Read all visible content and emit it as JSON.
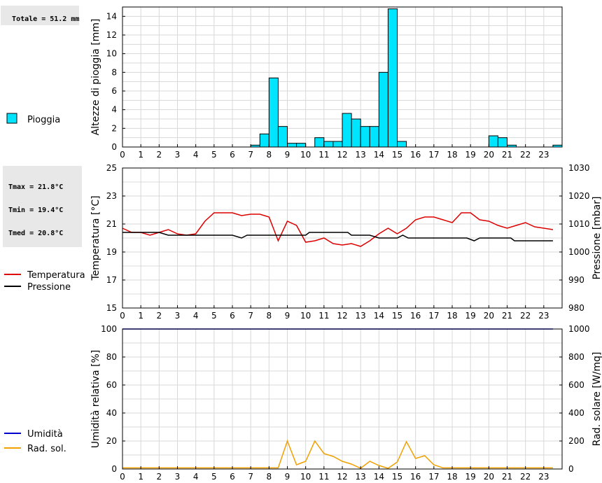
{
  "rain_info": {
    "total": "Totale = 51.2 mm"
  },
  "temp_info": {
    "tmax": "Tmax = 21.8°C",
    "tmin": "Tmin = 19.4°C",
    "tmed": "Tmed = 20.8°C"
  },
  "colors": {
    "rain": "#00e5ff",
    "temperature": "#dd0000",
    "pressure": "#000000",
    "humidity": "#0000cc",
    "radiation": "#f0a000",
    "grid": "#d8d8d8"
  },
  "chart_data": [
    {
      "type": "bar",
      "ylabel": "Altezze di pioggia [mm]",
      "xlim": [
        0,
        24
      ],
      "ylim": [
        0,
        15
      ],
      "yticks": [
        0,
        2,
        4,
        6,
        8,
        10,
        12,
        14
      ],
      "xticks": [
        "0",
        "1",
        "2",
        "3",
        "4",
        "5",
        "6",
        "7",
        "8",
        "9",
        "10",
        "11",
        "12",
        "13",
        "14",
        "15",
        "16",
        "17",
        "18",
        "19",
        "20",
        "21",
        "22",
        "23"
      ],
      "grid": true,
      "series": [
        {
          "name": "Pioggia",
          "bar_width": 0.5,
          "points": [
            [
              7.0,
              0.2
            ],
            [
              7.5,
              1.4
            ],
            [
              8.0,
              7.4
            ],
            [
              8.5,
              2.2
            ],
            [
              9.0,
              0.4
            ],
            [
              9.5,
              0.4
            ],
            [
              10.5,
              1.0
            ],
            [
              11.0,
              0.6
            ],
            [
              11.5,
              0.6
            ],
            [
              12.0,
              3.6
            ],
            [
              12.5,
              3.0
            ],
            [
              13.0,
              2.2
            ],
            [
              13.5,
              2.2
            ],
            [
              14.0,
              8.0
            ],
            [
              14.5,
              14.8
            ],
            [
              15.0,
              0.6
            ],
            [
              20.0,
              1.2
            ],
            [
              20.5,
              1.0
            ],
            [
              21.0,
              0.2
            ],
            [
              23.5,
              0.2
            ]
          ]
        }
      ]
    },
    {
      "type": "line",
      "ylabel": "Temperatura [°C]",
      "ylabel_right": "Pressione [mbar]",
      "xlim": [
        0,
        24
      ],
      "ylim": [
        15,
        25
      ],
      "ylim_right": [
        980,
        1030
      ],
      "yticks": [
        15,
        17,
        19,
        21,
        23,
        25
      ],
      "yticks_right": [
        980,
        990,
        1000,
        1010,
        1020,
        1030
      ],
      "xticks": [
        "0",
        "1",
        "2",
        "3",
        "4",
        "5",
        "6",
        "7",
        "8",
        "9",
        "10",
        "11",
        "12",
        "13",
        "14",
        "15",
        "16",
        "17",
        "18",
        "19",
        "20",
        "21",
        "22",
        "23"
      ],
      "grid": true,
      "series": [
        {
          "name": "Temperatura",
          "axis": "left",
          "points": [
            [
              0,
              20.7
            ],
            [
              0.5,
              20.4
            ],
            [
              1,
              20.4
            ],
            [
              1.5,
              20.2
            ],
            [
              2,
              20.4
            ],
            [
              2.5,
              20.6
            ],
            [
              3,
              20.3
            ],
            [
              3.5,
              20.2
            ],
            [
              4,
              20.3
            ],
            [
              4.5,
              21.2
            ],
            [
              5,
              21.8
            ],
            [
              5.5,
              21.8
            ],
            [
              6,
              21.8
            ],
            [
              6.5,
              21.6
            ],
            [
              7,
              21.7
            ],
            [
              7.5,
              21.7
            ],
            [
              8,
              21.5
            ],
            [
              8.5,
              19.8
            ],
            [
              9,
              21.2
            ],
            [
              9.5,
              20.9
            ],
            [
              10,
              19.7
            ],
            [
              10.5,
              19.8
            ],
            [
              11,
              20.0
            ],
            [
              11.5,
              19.6
            ],
            [
              12,
              19.5
            ],
            [
              12.5,
              19.6
            ],
            [
              13,
              19.4
            ],
            [
              13.5,
              19.8
            ],
            [
              14,
              20.3
            ],
            [
              14.5,
              20.7
            ],
            [
              15,
              20.3
            ],
            [
              15.5,
              20.7
            ],
            [
              16,
              21.3
            ],
            [
              16.5,
              21.5
            ],
            [
              17,
              21.5
            ],
            [
              17.5,
              21.3
            ],
            [
              18,
              21.1
            ],
            [
              18.5,
              21.8
            ],
            [
              19,
              21.8
            ],
            [
              19.5,
              21.3
            ],
            [
              20,
              21.2
            ],
            [
              20.5,
              20.9
            ],
            [
              21,
              20.7
            ],
            [
              21.5,
              20.9
            ],
            [
              22,
              21.1
            ],
            [
              22.5,
              20.8
            ],
            [
              23,
              20.7
            ],
            [
              23.5,
              20.6
            ]
          ]
        },
        {
          "name": "Pressione",
          "axis": "right",
          "points": [
            [
              0,
              1007
            ],
            [
              2,
              1007
            ],
            [
              2.5,
              1006
            ],
            [
              6,
              1006
            ],
            [
              6.5,
              1005
            ],
            [
              6.8,
              1006
            ],
            [
              10,
              1006
            ],
            [
              10.2,
              1007
            ],
            [
              12.3,
              1007
            ],
            [
              12.5,
              1006
            ],
            [
              13.5,
              1006
            ],
            [
              14,
              1005
            ],
            [
              15,
              1005
            ],
            [
              15.3,
              1006
            ],
            [
              15.6,
              1005
            ],
            [
              18.8,
              1005
            ],
            [
              19.2,
              1004
            ],
            [
              19.5,
              1005
            ],
            [
              21.2,
              1005
            ],
            [
              21.4,
              1004
            ],
            [
              23.5,
              1004
            ]
          ]
        }
      ]
    },
    {
      "type": "line",
      "ylabel": "Umidità relativa [%]",
      "ylabel_right": "Rad. solare [W/mq]",
      "xlim": [
        0,
        24
      ],
      "ylim": [
        0,
        100
      ],
      "ylim_right": [
        0,
        1000
      ],
      "yticks": [
        0,
        20,
        40,
        60,
        80,
        100
      ],
      "yticks_right": [
        0,
        200,
        400,
        600,
        800,
        1000
      ],
      "xticks": [
        "0",
        "1",
        "2",
        "3",
        "4",
        "5",
        "6",
        "7",
        "8",
        "9",
        "10",
        "11",
        "12",
        "13",
        "14",
        "15",
        "16",
        "17",
        "18",
        "19",
        "20",
        "21",
        "22",
        "23"
      ],
      "grid": true,
      "series": [
        {
          "name": "Umidità",
          "axis": "left",
          "points": [
            [
              0,
              100
            ],
            [
              23.5,
              100
            ]
          ]
        },
        {
          "name": "Rad. sol.",
          "axis": "right",
          "points": [
            [
              0,
              8
            ],
            [
              8,
              8
            ],
            [
              8.5,
              8
            ],
            [
              9,
              200
            ],
            [
              9.5,
              30
            ],
            [
              10,
              55
            ],
            [
              10.5,
              200
            ],
            [
              11,
              110
            ],
            [
              11.5,
              90
            ],
            [
              12,
              55
            ],
            [
              12.5,
              35
            ],
            [
              13,
              5
            ],
            [
              13.5,
              55
            ],
            [
              14,
              25
            ],
            [
              14.5,
              5
            ],
            [
              15,
              50
            ],
            [
              15.5,
              195
            ],
            [
              16,
              75
            ],
            [
              16.5,
              95
            ],
            [
              17,
              30
            ],
            [
              17.5,
              8
            ],
            [
              23.5,
              8
            ]
          ]
        }
      ]
    }
  ]
}
